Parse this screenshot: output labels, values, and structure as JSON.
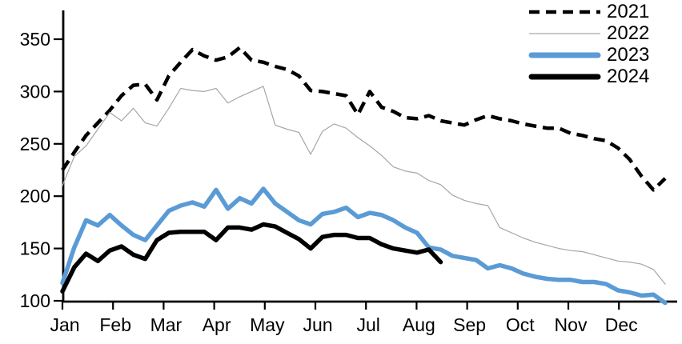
{
  "chart_data": {
    "type": "line",
    "title": "",
    "xlabel": "",
    "ylabel": "",
    "x_axis": {
      "tick_labels": [
        "Jan",
        "Feb",
        "Mar",
        "Apr",
        "May",
        "Jun",
        "Jul",
        "Aug",
        "Sep",
        "Oct",
        "Nov",
        "Dec"
      ],
      "note": "weekly data points, one series per year"
    },
    "y_axis": {
      "ticks": [
        100,
        150,
        200,
        250,
        300,
        350
      ],
      "ylim": [
        100,
        377
      ],
      "grid": false
    },
    "legend": {
      "position": "top-right"
    },
    "series": [
      {
        "name": "2021",
        "style": "dashed",
        "color": "#000000",
        "width": 4.5,
        "dash": "14 8",
        "values": [
          225,
          242,
          258,
          270,
          282,
          296,
          306,
          307,
          292,
          315,
          328,
          340,
          334,
          330,
          333,
          342,
          330,
          328,
          324,
          321,
          315,
          301,
          300,
          298,
          296,
          278,
          300,
          285,
          281,
          275,
          274,
          277,
          272,
          270,
          268,
          273,
          277,
          274,
          272,
          269,
          267,
          265,
          265,
          260,
          258,
          255,
          253,
          246,
          235,
          219,
          206,
          217
        ]
      },
      {
        "name": "2022",
        "style": "solid-thin",
        "color": "#a6a6a6",
        "width": 1.2,
        "dash": null,
        "values": [
          210,
          238,
          248,
          264,
          280,
          272,
          284,
          270,
          267,
          284,
          303,
          301,
          300,
          303,
          289,
          295,
          300,
          305,
          268,
          264,
          261,
          240,
          262,
          269,
          265,
          256,
          248,
          239,
          228,
          224,
          222,
          215,
          211,
          201,
          196,
          193,
          191,
          170,
          165,
          160,
          156,
          153,
          150,
          148,
          147,
          144,
          141,
          138,
          137,
          135,
          130,
          116
        ]
      },
      {
        "name": "2023",
        "style": "solid-thick",
        "color": "#5b9bd5",
        "width": 5.5,
        "dash": null,
        "values": [
          117,
          151,
          177,
          172,
          182,
          172,
          163,
          158,
          172,
          186,
          191,
          194,
          190,
          206,
          188,
          198,
          193,
          207,
          193,
          185,
          177,
          173,
          183,
          185,
          189,
          180,
          184,
          182,
          177,
          170,
          165,
          151,
          149,
          143,
          141,
          139,
          131,
          134,
          131,
          126,
          123,
          121,
          120,
          120,
          118,
          118,
          116,
          110,
          108,
          105,
          106,
          98
        ]
      },
      {
        "name": "2024",
        "style": "solid-thick",
        "color": "#000000",
        "width": 5.5,
        "dash": null,
        "values": [
          109,
          132,
          145,
          138,
          148,
          152,
          144,
          140,
          158,
          165,
          166,
          166,
          166,
          158,
          170,
          170,
          168,
          173,
          171,
          165,
          159,
          150,
          161,
          163,
          163,
          160,
          160,
          154,
          150,
          148,
          146,
          149,
          137
        ]
      }
    ]
  }
}
